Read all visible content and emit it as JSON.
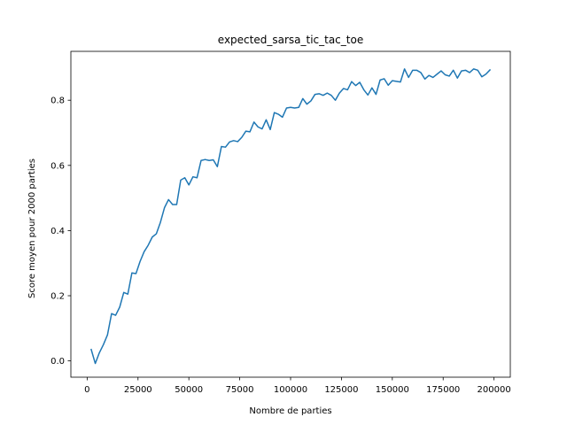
{
  "chart_data": {
    "type": "line",
    "title": "expected_sarsa_tic_tac_toe",
    "xlabel": "Nombre de parties",
    "ylabel": "Score moyen pour 2000 parties",
    "xlim": [
      -8000,
      208000
    ],
    "ylim": [
      -0.05,
      0.95
    ],
    "xticks": [
      0,
      25000,
      50000,
      75000,
      100000,
      125000,
      150000,
      175000,
      200000
    ],
    "xtick_labels": [
      "0",
      "25000",
      "50000",
      "75000",
      "100000",
      "125000",
      "150000",
      "175000",
      "200000"
    ],
    "yticks": [
      0.0,
      0.2,
      0.4,
      0.6,
      0.8
    ],
    "ytick_labels": [
      "0.0",
      "0.2",
      "0.4",
      "0.6",
      "0.8"
    ],
    "grid": false,
    "line_color": "#1f77b4",
    "series": [
      {
        "x": [
          2000,
          4000,
          6000,
          8000,
          10000,
          12000,
          14000,
          16000,
          18000,
          20000,
          22000,
          24000,
          26000,
          28000,
          30000,
          32000,
          34000,
          36000,
          38000,
          40000,
          42000,
          44000,
          46000,
          48000,
          50000,
          52000,
          54000,
          56000,
          58000,
          60000,
          62000,
          64000,
          66000,
          68000,
          70000,
          72000,
          74000,
          76000,
          78000,
          80000,
          82000,
          84000,
          86000,
          88000,
          90000,
          92000,
          94000,
          96000,
          98000,
          100000,
          102000,
          104000,
          106000,
          108000,
          110000,
          112000,
          114000,
          116000,
          118000,
          120000,
          122000,
          124000,
          126000,
          128000,
          130000,
          132000,
          134000,
          136000,
          138000,
          140000,
          142000,
          144000,
          146000,
          148000,
          150000,
          152000,
          154000,
          156000,
          158000,
          160000,
          162000,
          164000,
          166000,
          168000,
          170000,
          172000,
          174000,
          176000,
          178000,
          180000,
          182000,
          184000,
          186000,
          188000,
          190000,
          192000,
          194000,
          196000,
          198000
        ],
        "values": [
          0.035,
          -0.008,
          0.025,
          0.05,
          0.08,
          0.145,
          0.14,
          0.165,
          0.21,
          0.205,
          0.27,
          0.268,
          0.305,
          0.335,
          0.355,
          0.38,
          0.39,
          0.425,
          0.47,
          0.495,
          0.48,
          0.48,
          0.555,
          0.562,
          0.54,
          0.565,
          0.562,
          0.615,
          0.618,
          0.615,
          0.617,
          0.596,
          0.658,
          0.656,
          0.672,
          0.676,
          0.673,
          0.686,
          0.705,
          0.703,
          0.733,
          0.718,
          0.712,
          0.74,
          0.71,
          0.762,
          0.757,
          0.748,
          0.776,
          0.778,
          0.776,
          0.778,
          0.805,
          0.788,
          0.798,
          0.818,
          0.82,
          0.815,
          0.822,
          0.815,
          0.8,
          0.822,
          0.836,
          0.832,
          0.857,
          0.845,
          0.855,
          0.832,
          0.816,
          0.838,
          0.818,
          0.862,
          0.866,
          0.846,
          0.86,
          0.858,
          0.856,
          0.896,
          0.87,
          0.892,
          0.892,
          0.885,
          0.865,
          0.876,
          0.87,
          0.88,
          0.89,
          0.878,
          0.874,
          0.892,
          0.868,
          0.89,
          0.892,
          0.885,
          0.896,
          0.892,
          0.872,
          0.88,
          0.893
        ]
      }
    ]
  }
}
